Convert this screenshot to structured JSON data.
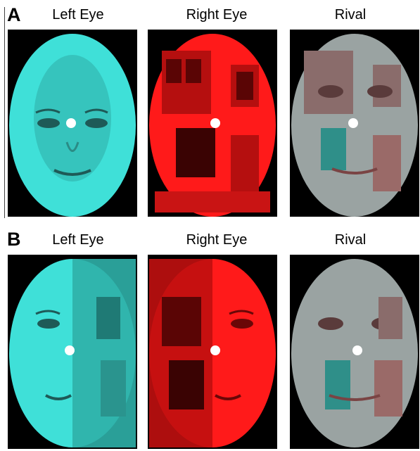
{
  "panels": [
    {
      "letter": "A",
      "labels": [
        "Left Eye",
        "Right Eye",
        "Rival"
      ]
    },
    {
      "letter": "B",
      "labels": [
        "Left Eye",
        "Right Eye",
        "Rival"
      ]
    }
  ],
  "colors": {
    "cyan": "#3fe0d8",
    "red": "#ff1a1a",
    "rival_gray": "#9aa3a2",
    "fixation": "#ffffff",
    "background": "#000000"
  }
}
